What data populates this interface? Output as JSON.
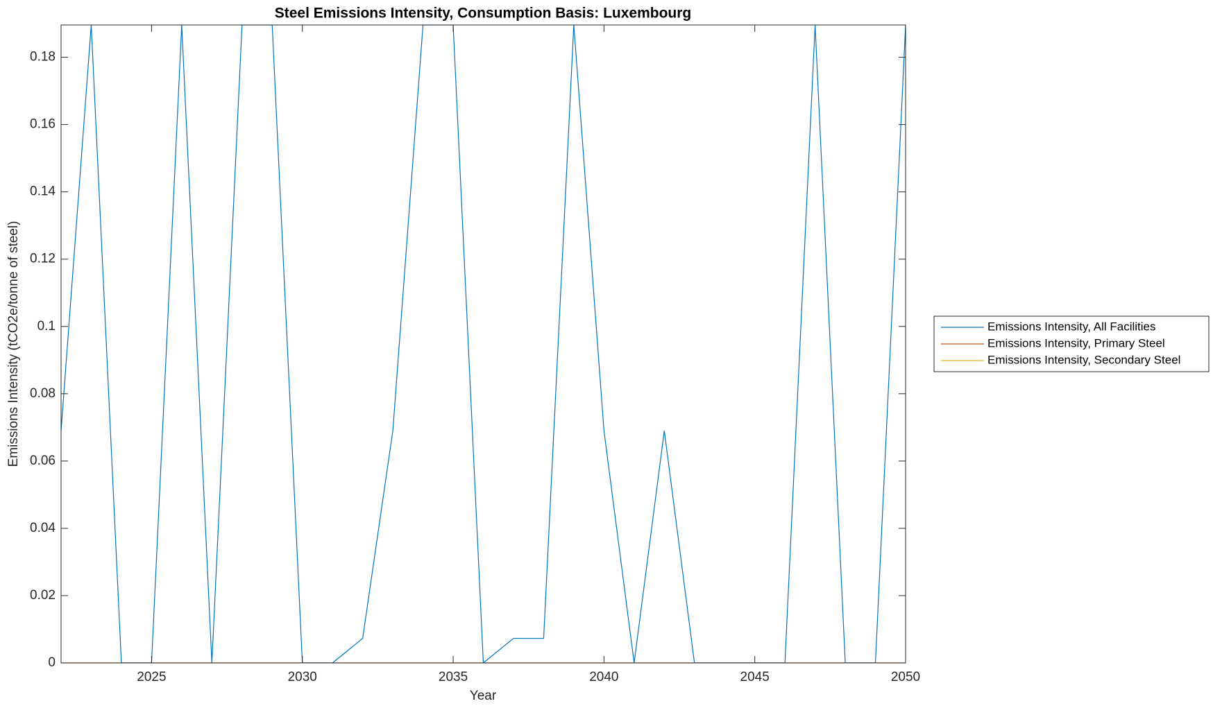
{
  "chart_data": {
    "type": "line",
    "title": "Steel Emissions Intensity, Consumption Basis: Luxembourg",
    "xlabel": "Year",
    "ylabel": "Emissions Intensity (tCO2e/tonne of steel)",
    "x": [
      2022,
      2023,
      2024,
      2025,
      2026,
      2027,
      2028,
      2029,
      2030,
      2031,
      2032,
      2033,
      2034,
      2035,
      2036,
      2037,
      2038,
      2039,
      2040,
      2041,
      2042,
      2043,
      2044,
      2045,
      2046,
      2047,
      2048,
      2049,
      2050
    ],
    "series": [
      {
        "name": "Emissions Intensity, All Facilities",
        "color": "#0072BD",
        "values": [
          0.069,
          0.1896,
          0,
          0,
          0.1896,
          0,
          0.1896,
          0.1896,
          0,
          0,
          0.0073,
          0.069,
          0.1896,
          0.1896,
          0,
          0.0073,
          0.0073,
          0.1896,
          0.069,
          0,
          0.069,
          0,
          0,
          0,
          0,
          0.1896,
          0,
          0,
          0.1896
        ]
      },
      {
        "name": "Emissions Intensity, Primary Steel",
        "color": "#D95319",
        "values": [
          0,
          0,
          0,
          0,
          0,
          0,
          0,
          0,
          0,
          0,
          0,
          0,
          0,
          0,
          0,
          0,
          0,
          0,
          0,
          0,
          0,
          0,
          0,
          0,
          0,
          0,
          0,
          0,
          0
        ]
      },
      {
        "name": "Emissions Intensity, Secondary Steel",
        "color": "#EDB120",
        "values": [
          0,
          0,
          0,
          0,
          0,
          0,
          0,
          0,
          0,
          0,
          0,
          0,
          0,
          0,
          0,
          0,
          0,
          0,
          0,
          0,
          0,
          0,
          0,
          0,
          0,
          0,
          0,
          0,
          0
        ]
      }
    ],
    "xlim": [
      2022,
      2050
    ],
    "xticks": [
      2025,
      2030,
      2035,
      2040,
      2045,
      2050
    ],
    "ylim": [
      0,
      0.1896
    ],
    "yticks": [
      0,
      0.02,
      0.04,
      0.06,
      0.08,
      0.1,
      0.12,
      0.14,
      0.16,
      0.18
    ],
    "legend": "right"
  }
}
